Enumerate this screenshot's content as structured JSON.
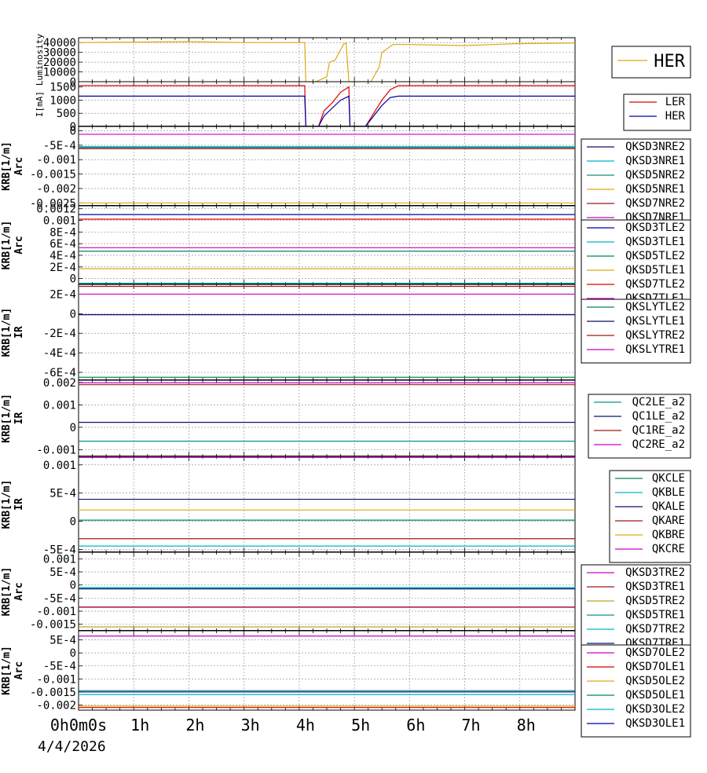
{
  "date_label": "4/4/2026",
  "x_ticks": [
    "0h0m0s",
    "1h",
    "2h",
    "3h",
    "4h",
    "5h",
    "6h",
    "7h",
    "8h"
  ],
  "colors": {
    "red": "#dd0000",
    "blue": "#0000aa",
    "cyan": "#00b4c8",
    "green": "#008855",
    "gold": "#dcaa14",
    "darkred": "#a01818",
    "magenta": "#cc00cc",
    "navy": "#101070",
    "teal": "#109080",
    "olive": "#c0a030"
  },
  "chart_data": [
    {
      "type": "line",
      "ylabel": "Luminosity",
      "ylim": [
        0,
        45000
      ],
      "yticks": [
        "40000",
        "30000",
        "20000",
        "10000",
        "0"
      ],
      "ytick_values": [
        40000,
        30000,
        20000,
        10000,
        0
      ],
      "legend_big": true,
      "series": [
        {
          "name": "HER",
          "color": "gold",
          "x": [
            0,
            1,
            2,
            3,
            4.1,
            4.12,
            4.3,
            4.5,
            4.55,
            4.65,
            4.8,
            4.85,
            4.9,
            5.3,
            5.45,
            5.5,
            5.7,
            6,
            7,
            8,
            9
          ],
          "y": [
            40000,
            40500,
            41000,
            40000,
            40000,
            0,
            0,
            5000,
            20000,
            22000,
            38000,
            40000,
            0,
            0,
            15000,
            30000,
            38000,
            38000,
            37000,
            39000,
            39500
          ]
        }
      ]
    },
    {
      "type": "line",
      "ylabel": "I[mA]",
      "ylim": [
        0,
        1700
      ],
      "yticks": [
        "1500",
        "1000",
        "500",
        "0"
      ],
      "ytick_values": [
        1500,
        1000,
        500,
        0
      ],
      "series": [
        {
          "name": "LER",
          "color": "red",
          "x": [
            0,
            4.1,
            4.12,
            4.35,
            4.45,
            4.6,
            4.75,
            4.9,
            4.92,
            5.2,
            5.35,
            5.5,
            5.65,
            5.8,
            9
          ],
          "y": [
            1550,
            1550,
            0,
            0,
            600,
            900,
            1300,
            1500,
            0,
            0,
            500,
            1000,
            1400,
            1550,
            1550
          ]
        },
        {
          "name": "HER",
          "color": "blue",
          "x": [
            0,
            4.1,
            4.12,
            4.35,
            4.45,
            4.6,
            4.75,
            4.9,
            4.92,
            5.2,
            5.35,
            5.5,
            5.65,
            5.8,
            9
          ],
          "y": [
            1150,
            1150,
            0,
            0,
            400,
            700,
            1000,
            1150,
            0,
            0,
            400,
            800,
            1100,
            1150,
            1150
          ]
        }
      ]
    },
    {
      "type": "line",
      "ylabel": "KRB[1/m]",
      "ylabel2": "Arc",
      "ylim": [
        -0.0026,
        0.00015
      ],
      "yticks": [
        "0",
        "-5E-4",
        "-0.001",
        "-0.0015",
        "-0.002",
        "-0.0025"
      ],
      "ytick_values": [
        0,
        -0.0005,
        -0.001,
        -0.0015,
        -0.002,
        -0.0025
      ],
      "series": [
        {
          "name": "QKSD3NRE2",
          "color": "navy",
          "y": -0.00056
        },
        {
          "name": "QKSD3NRE1",
          "color": "cyan",
          "y": -0.00055
        },
        {
          "name": "QKSD5NRE2",
          "color": "teal",
          "y": -0.00058
        },
        {
          "name": "QKSD5NRE1",
          "color": "gold",
          "y": -0.0025
        },
        {
          "name": "QKSD7NRE2",
          "color": "darkred",
          "y": -0.00062
        },
        {
          "name": "QKSD7NRE1",
          "color": "magenta",
          "y": -0.00012
        }
      ]
    },
    {
      "type": "line",
      "ylabel": "KRB[1/m]",
      "ylabel2": "Arc",
      "ylim": [
        -0.0001,
        0.00125
      ],
      "yticks": [
        "0.0012",
        "0.001",
        "8E-4",
        "6E-4",
        "4E-4",
        "2E-4",
        "0"
      ],
      "ytick_values": [
        0.0012,
        0.001,
        0.0008,
        0.0006,
        0.0004,
        0.0002,
        0
      ],
      "series": [
        {
          "name": "QKSD3TLE2",
          "color": "blue",
          "y": 0.0011
        },
        {
          "name": "QKSD3TLE1",
          "color": "cyan",
          "y": -8e-05
        },
        {
          "name": "QKSD5TLE2",
          "color": "green",
          "y": 0.00047
        },
        {
          "name": "QKSD5TLE1",
          "color": "gold",
          "y": 0.00017
        },
        {
          "name": "QKSD7TLE2",
          "color": "red",
          "y": 0.00102
        },
        {
          "name": "QKSD7TLE1",
          "color": "magenta",
          "y": 0.00053
        }
      ]
    },
    {
      "type": "line",
      "ylabel": "KRB[1/m]",
      "ylabel2": "IR",
      "ylim": [
        -0.00068,
        0.0003
      ],
      "yticks": [
        "2E-4",
        "0",
        "-2E-4",
        "-4E-4",
        "-6E-4"
      ],
      "ytick_values": [
        0.0002,
        0,
        -0.0002,
        -0.0004,
        -0.0006
      ],
      "series": [
        {
          "name": "QKSLYTLE2",
          "color": "green",
          "y": -0.00065
        },
        {
          "name": "QKSLYTLE1",
          "color": "navy",
          "y": -1e-05
        },
        {
          "name": "QKSLYTRE2",
          "color": "darkred",
          "y": 0.00028
        },
        {
          "name": "QKSLYTRE1",
          "color": "magenta",
          "y": 0.0002
        }
      ]
    },
    {
      "type": "line",
      "ylabel": "KRB[1/m]",
      "ylabel2": "IR",
      "ylim": [
        -0.0013,
        0.0021
      ],
      "yticks": [
        "0.002",
        "0.001",
        "0",
        "-0.001"
      ],
      "ytick_values": [
        0.002,
        0.001,
        0,
        -0.001
      ],
      "series": [
        {
          "name": "QC2LE_a2",
          "color": "teal",
          "y": -0.00062
        },
        {
          "name": "QC1LE_a2",
          "color": "navy",
          "y": 0.00022
        },
        {
          "name": "QC1RE_a2",
          "color": "darkred",
          "y": 0.0019
        },
        {
          "name": "QC2RE_a2",
          "color": "magenta",
          "y": 0.00198
        }
      ]
    },
    {
      "type": "line",
      "ylabel": "KRB[1/m]",
      "ylabel2": "IR",
      "ylim": [
        -0.00055,
        0.00115
      ],
      "yticks": [
        "0.001",
        "5E-4",
        "0",
        "-5E-4"
      ],
      "ytick_values": [
        0.001,
        0.0005,
        0,
        -0.0005
      ],
      "series": [
        {
          "name": "QKCLE",
          "color": "green",
          "y": 2e-05
        },
        {
          "name": "QKBLE",
          "color": "cyan",
          "y": -0.00044
        },
        {
          "name": "QKALE",
          "color": "navy",
          "y": 0.00039
        },
        {
          "name": "QKARE",
          "color": "darkred",
          "y": -0.00031
        },
        {
          "name": "QKBRE",
          "color": "gold",
          "y": 0.0002
        },
        {
          "name": "QKCRE",
          "color": "magenta",
          "y": 0.00113
        }
      ]
    },
    {
      "type": "line",
      "ylabel": "KRB[1/m]",
      "ylabel2": "Arc",
      "ylim": [
        -0.00175,
        0.00125
      ],
      "yticks": [
        "0.001",
        "5E-4",
        "0",
        "-5E-4",
        "-0.001",
        "-0.0015"
      ],
      "ytick_values": [
        0.001,
        0.0005,
        0,
        -0.0005,
        -0.001,
        -0.0015
      ],
      "series": [
        {
          "name": "QKSD3TRE2",
          "color": "magenta",
          "y": -0.00085
        },
        {
          "name": "QKSD3TRE1",
          "color": "darkred",
          "y": -0.00084
        },
        {
          "name": "QKSD5TRE2",
          "color": "olive",
          "y": -0.0016
        },
        {
          "name": "QKSD5TRE1",
          "color": "teal",
          "y": -0.00012
        },
        {
          "name": "QKSD7TRE2",
          "color": "cyan",
          "y": -0.0001
        },
        {
          "name": "QKSD7TRE1",
          "color": "navy",
          "y": -0.00015
        }
      ]
    },
    {
      "type": "line",
      "ylabel": "KRB[1/m]",
      "ylabel2": "Arc",
      "ylim": [
        -0.0022,
        0.00085
      ],
      "yticks": [
        "5E-4",
        "0",
        "-5E-4",
        "-0.001",
        "-0.0015",
        "-0.002"
      ],
      "ytick_values": [
        0.0005,
        0,
        -0.0005,
        -0.001,
        -0.0015,
        -0.002
      ],
      "series": [
        {
          "name": "QKSD7OLE2",
          "color": "magenta",
          "y": 0.00065
        },
        {
          "name": "QKSD7OLE1",
          "color": "red",
          "y": -0.0021
        },
        {
          "name": "QKSD5OLE2",
          "color": "gold",
          "y": -0.00205
        },
        {
          "name": "QKSD5OLE1",
          "color": "green",
          "y": -0.00145
        },
        {
          "name": "QKSD3OLE2",
          "color": "cyan",
          "y": -0.0016
        },
        {
          "name": "QKSD3OLE1",
          "color": "blue",
          "y": -0.0015
        }
      ]
    }
  ]
}
